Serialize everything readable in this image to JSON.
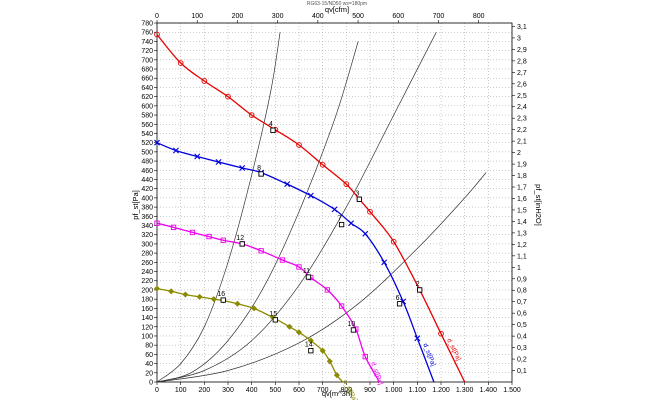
{
  "chart_data": {
    "type": "line",
    "title": "RG63-15/ND50 ws=180pm",
    "xlabel": "qv[m^3h]",
    "x2label": "qv[cfm]",
    "ylabel": "pf_st[Pa]",
    "y2label": "pf_st[inH2O]",
    "xlim": [
      0,
      1500
    ],
    "ylim": [
      0,
      780
    ],
    "x2lim": [
      0,
      882.86
    ],
    "y2lim": [
      0,
      3.13
    ],
    "grid": true,
    "x_ticks": [
      "0",
      "100",
      "200",
      "300",
      "400",
      "500",
      "600",
      "700",
      "800",
      "900",
      "1.000",
      "1.100",
      "1.200",
      "1.300",
      "1.400",
      "1.500"
    ],
    "y_ticks": [
      "0",
      "20",
      "40",
      "60",
      "80",
      "100",
      "120",
      "140",
      "160",
      "180",
      "200",
      "220",
      "240",
      "260",
      "280",
      "300",
      "320",
      "340",
      "360",
      "380",
      "400",
      "420",
      "440",
      "460",
      "480",
      "500",
      "520",
      "540",
      "560",
      "580",
      "600",
      "620",
      "640",
      "660",
      "680",
      "700",
      "720",
      "740",
      "760",
      "780"
    ],
    "x2_ticks": [
      "0",
      "100",
      "200",
      "300",
      "400",
      "500",
      "600",
      "700",
      "800"
    ],
    "y2_ticks": [
      "0,1",
      "0,2",
      "0,3",
      "0,4",
      "0,5",
      "0,6",
      "0,7",
      "0,8",
      "0,9",
      "1",
      "1,1",
      "1,2",
      "1,3",
      "1,4",
      "1,5",
      "1,6",
      "1,7",
      "1,8",
      "1,9",
      "2",
      "2,1",
      "2,2",
      "2,3",
      "2,4",
      "2,5",
      "2,6",
      "2,7",
      "2,8",
      "2,9",
      "3",
      "3,1"
    ],
    "series": [
      {
        "label": "d_st[Pa]",
        "color": "#e60000",
        "marker": "circle",
        "points": [
          [
            0,
            755
          ],
          [
            100,
            693
          ],
          [
            200,
            654
          ],
          [
            300,
            620
          ],
          [
            400,
            580
          ],
          [
            500,
            548
          ],
          [
            600,
            515
          ],
          [
            700,
            472
          ],
          [
            800,
            430
          ],
          [
            855,
            397
          ],
          [
            900,
            370
          ],
          [
            1000,
            305
          ],
          [
            1110,
            200
          ],
          [
            1200,
            105
          ],
          [
            1300,
            0
          ]
        ]
      },
      {
        "label": "d_st[Pa]",
        "color": "#0000dd",
        "marker": "x",
        "points": [
          [
            0,
            520
          ],
          [
            80,
            503
          ],
          [
            170,
            490
          ],
          [
            260,
            478
          ],
          [
            360,
            465
          ],
          [
            440,
            455
          ],
          [
            550,
            430
          ],
          [
            650,
            405
          ],
          [
            750,
            375
          ],
          [
            820,
            345
          ],
          [
            880,
            322
          ],
          [
            960,
            260
          ],
          [
            1040,
            175
          ],
          [
            1100,
            95
          ],
          [
            1170,
            0
          ]
        ]
      },
      {
        "label": "d_st[Pa]",
        "color": "#ee00ee",
        "marker": "square",
        "points": [
          [
            0,
            345
          ],
          [
            70,
            336
          ],
          [
            150,
            325
          ],
          [
            220,
            316
          ],
          [
            280,
            308
          ],
          [
            360,
            300
          ],
          [
            440,
            285
          ],
          [
            530,
            265
          ],
          [
            600,
            250
          ],
          [
            650,
            227
          ],
          [
            720,
            200
          ],
          [
            780,
            165
          ],
          [
            840,
            115
          ],
          [
            880,
            55
          ],
          [
            940,
            0
          ]
        ]
      },
      {
        "label": "d_st[Pa]",
        "color": "#8b8b00",
        "marker": "diamond",
        "points": [
          [
            0,
            203
          ],
          [
            60,
            197
          ],
          [
            120,
            190
          ],
          [
            180,
            185
          ],
          [
            240,
            180
          ],
          [
            280,
            177
          ],
          [
            340,
            170
          ],
          [
            410,
            160
          ],
          [
            490,
            140
          ],
          [
            560,
            120
          ],
          [
            600,
            108
          ],
          [
            650,
            90
          ],
          [
            700,
            68
          ],
          [
            730,
            45
          ],
          [
            760,
            15
          ],
          [
            785,
            0
          ]
        ]
      }
    ],
    "system_curves": [
      {
        "points": [
          [
            0,
            0
          ],
          [
            100,
            40
          ],
          [
            200,
            120
          ],
          [
            300,
            260
          ],
          [
            400,
            450
          ],
          [
            480,
            630
          ],
          [
            520,
            760
          ]
        ]
      },
      {
        "points": [
          [
            0,
            0
          ],
          [
            150,
            22
          ],
          [
            300,
            90
          ],
          [
            450,
            205
          ],
          [
            600,
            370
          ],
          [
            750,
            570
          ],
          [
            850,
            740
          ]
        ]
      },
      {
        "points": [
          [
            0,
            0
          ],
          [
            200,
            25
          ],
          [
            400,
            90
          ],
          [
            600,
            210
          ],
          [
            800,
            380
          ],
          [
            1000,
            580
          ],
          [
            1180,
            760
          ]
        ]
      },
      {
        "points": [
          [
            0,
            0
          ],
          [
            300,
            25
          ],
          [
            600,
            85
          ],
          [
            850,
            170
          ],
          [
            1100,
            290
          ],
          [
            1300,
            400
          ],
          [
            1390,
            455
          ]
        ]
      }
    ],
    "points": [
      {
        "label": "4",
        "x": 490,
        "y": 547
      },
      {
        "label": "8",
        "x": 440,
        "y": 452
      },
      {
        "label": "12",
        "x": 360,
        "y": 300
      },
      {
        "label": "16",
        "x": 280,
        "y": 178
      },
      {
        "label": "3",
        "x": 855,
        "y": 397
      },
      {
        "label": "7",
        "x": 780,
        "y": 342
      },
      {
        "label": "11",
        "x": 640,
        "y": 228
      },
      {
        "label": "15",
        "x": 500,
        "y": 135
      },
      {
        "label": "2",
        "x": 1110,
        "y": 200
      },
      {
        "label": "6",
        "x": 1025,
        "y": 170
      },
      {
        "label": "10",
        "x": 830,
        "y": 113
      },
      {
        "label": "14",
        "x": 650,
        "y": 68
      }
    ]
  }
}
